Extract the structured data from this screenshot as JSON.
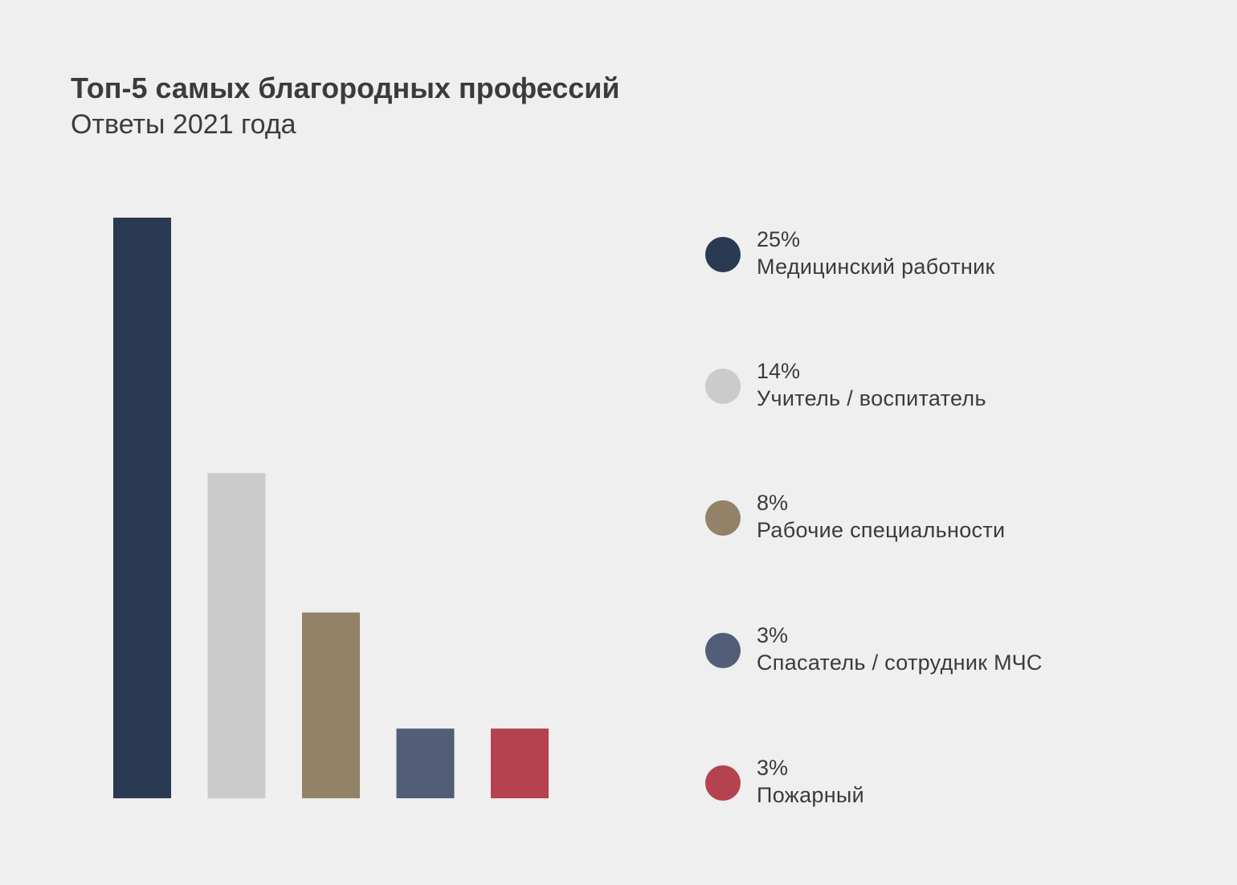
{
  "chart_data": {
    "type": "bar",
    "title": "Топ-5 самых благородных профессий",
    "subtitle": "Ответы 2021 года",
    "categories": [
      "Медицинский работник",
      "Учитель / воспитатель",
      "Рабочие специальности",
      "Спасатель / сотрудник МЧС",
      "Пожарный"
    ],
    "values": [
      25,
      14,
      8,
      3,
      3
    ],
    "value_labels": [
      "25%",
      "14%",
      "8%",
      "3%",
      "3%"
    ],
    "colors": [
      "#2b3a53",
      "#cbcbcb",
      "#948268",
      "#525e77",
      "#b5424f"
    ],
    "unit": "%",
    "ylim": [
      0,
      25
    ],
    "grid": false,
    "legend_position": "right"
  }
}
